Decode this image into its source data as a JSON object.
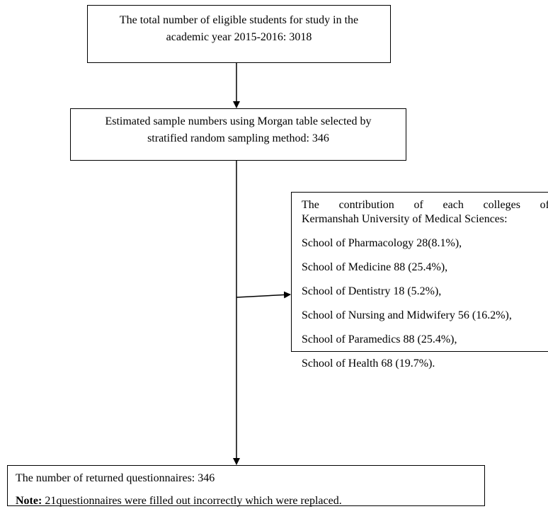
{
  "total": {
    "line1": "The total number of eligible students for study in the",
    "line2": "academic year 2015-2016: 3018"
  },
  "sample": {
    "line1": "Estimated sample numbers using Morgan table selected by",
    "line2": "stratified random sampling method: 346"
  },
  "colleges": {
    "heading_line1": "The contribution of each colleges of",
    "heading_line2": "Kermanshah University of Medical Sciences:",
    "items": [
      "School of Pharmacology 28(8.1%),",
      "School of Medicine 88 (25.4%),",
      "School of Dentistry 18 (5.2%),",
      "School of Nursing and Midwifery 56 (16.2%),",
      "School of Paramedics 88 (25.4%),",
      "School of Health 68 (19.7%)."
    ]
  },
  "returned": {
    "text": "The number of returned questionnaires: 346",
    "note_label": "Note:",
    "note_text": " 21questionnaires were filled out incorrectly which were replaced."
  }
}
